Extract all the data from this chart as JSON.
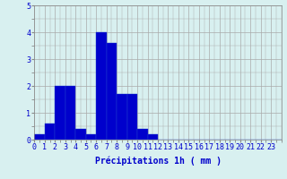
{
  "values": [
    0.2,
    0.6,
    2.0,
    2.0,
    0.4,
    0.2,
    4.0,
    3.6,
    1.7,
    1.7,
    0.4,
    0.2,
    0.0,
    0.0,
    0.0,
    0.0,
    0.0,
    0.0,
    0.0,
    0.0,
    0.0,
    0.0,
    0.0,
    0.0
  ],
  "bar_color": "#0000cc",
  "bar_edge_color": "#2244cc",
  "background_color": "#d8f0f0",
  "grid_color": "#aaaaaa",
  "xlabel": "Précipitations 1h ( mm )",
  "ylim": [
    0,
    5
  ],
  "yticks": [
    0,
    1,
    2,
    3,
    4,
    5
  ],
  "xlabel_fontsize": 7,
  "tick_fontsize": 6
}
